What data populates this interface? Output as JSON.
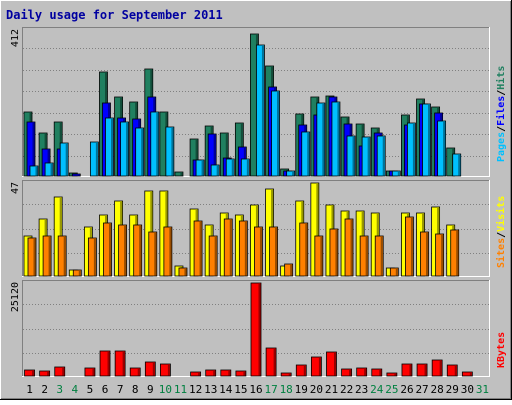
{
  "chart_data": {
    "type": "bar",
    "title": "Daily usage for September 2011",
    "categories": [
      "1",
      "2",
      "3",
      "4",
      "5",
      "6",
      "7",
      "8",
      "9",
      "10",
      "11",
      "12",
      "13",
      "14",
      "15",
      "16",
      "17",
      "18",
      "19",
      "20",
      "21",
      "22",
      "23",
      "24",
      "25",
      "26",
      "27",
      "28",
      "29",
      "30",
      "31"
    ],
    "weekend_days": [
      "3",
      "4",
      "10",
      "11",
      "17",
      "18",
      "24",
      "25",
      "31"
    ],
    "colors": {
      "background": "#c0c0c0",
      "frame": "#f0f0f0",
      "title": "#0000a0",
      "hits": "#208060",
      "files": "#0000ff",
      "pages": "#00c0ff",
      "visits": "#ffff00",
      "sites": "#ff8000",
      "kbytes": "#ff0000",
      "weekday_label": "#000000",
      "weekend_label": "#008040"
    },
    "panels": [
      {
        "id": "hits-files-pages",
        "y_max_label": "412",
        "ymax": 412,
        "legend": [
          {
            "text": "Pages",
            "color": "#00c0ff"
          },
          {
            "text": "/",
            "color": "#000000"
          },
          {
            "text": "Files",
            "color": "#0000ff"
          },
          {
            "text": "/",
            "color": "#000000"
          },
          {
            "text": "Hits",
            "color": "#208060"
          }
        ],
        "series": [
          {
            "name": "Hits",
            "color": "#208060",
            "values": [
              180,
              122,
              153,
              8,
              0,
              294,
              224,
              208,
              302,
              180,
              10,
              105,
              142,
              122,
              149,
              400,
              309,
              21,
              176,
              222,
              225,
              166,
              148,
              135,
              15,
              173,
              216,
              196,
              79,
              0,
              0
            ]
          },
          {
            "name": "Files",
            "color": "#0000ff",
            "values": [
              151,
              75,
              75,
              6,
              0,
              205,
              164,
              162,
              224,
              0,
              0,
              44,
              118,
              52,
              81,
              0,
              250,
              14,
              145,
              173,
              223,
              146,
              86,
              122,
              14,
              143,
              202,
              178,
              0,
              0,
              0
            ]
          },
          {
            "name": "Pages",
            "color": "#00c0ff",
            "values": [
              29,
              37,
              94,
              0,
              96,
              165,
              152,
              136,
              180,
              139,
              0,
              44,
              30,
              48,
              48,
              370,
              239,
              14,
              123,
              205,
              210,
              113,
              111,
              113,
              14,
              150,
              202,
              154,
              63,
              0,
              0
            ]
          }
        ]
      },
      {
        "id": "visits-sites",
        "y_max_label": "47",
        "ymax": 47,
        "legend": [
          {
            "text": "Sites",
            "color": "#ff8000"
          },
          {
            "text": "/",
            "color": "#000000"
          },
          {
            "text": "Visits",
            "color": "#ffff00"
          }
        ],
        "series": [
          {
            "name": "Visits",
            "color": "#ffff00",
            "values": [
              20,
              29,
              40,
              3,
              25,
              31,
              38,
              31,
              43,
              43,
              5,
              34,
              26,
              32,
              31,
              36,
              44,
              5,
              38,
              47,
              36,
              33,
              33,
              32,
              4,
              32,
              32,
              35,
              26,
              0,
              0
            ]
          },
          {
            "name": "Sites",
            "color": "#ff8000",
            "values": [
              19,
              20,
              20,
              3,
              19,
              27,
              26,
              26,
              22,
              25,
              4,
              28,
              20,
              29,
              28,
              25,
              25,
              6,
              27,
              20,
              24,
              29,
              20,
              20,
              4,
              30,
              22,
              21,
              23,
              0,
              0
            ]
          }
        ]
      },
      {
        "id": "kbytes",
        "y_max_label": "25120",
        "ymax": 25120,
        "legend": [
          {
            "text": "KBytes",
            "color": "#ff0000"
          }
        ],
        "series": [
          {
            "name": "KBytes",
            "color": "#ff0000",
            "values": [
              1600,
              1400,
              2400,
              0,
              2100,
              6800,
              6800,
              2100,
              3900,
              3300,
              0,
              1200,
              1500,
              1700,
              1400,
              25120,
              7500,
              800,
              2900,
              5000,
              6600,
              1900,
              2100,
              1900,
              800,
              3300,
              3300,
              4200,
              3100,
              1100,
              0
            ]
          }
        ]
      }
    ]
  }
}
